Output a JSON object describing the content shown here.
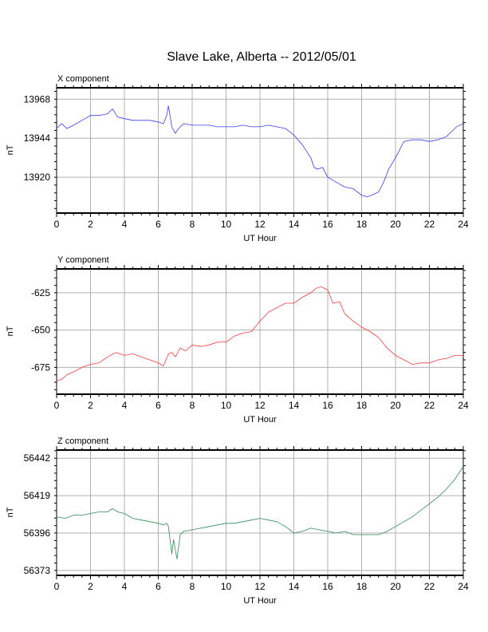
{
  "title": "Slave Lake, Alberta -- 2012/05/01",
  "chart_data": [
    {
      "type": "line",
      "panel_label": "X component",
      "xlabel": "UT Hour",
      "ylabel": "nT",
      "xlim": [
        0,
        24
      ],
      "ylim": [
        13898,
        13975
      ],
      "xticks": [
        0,
        2,
        4,
        6,
        8,
        10,
        12,
        14,
        16,
        18,
        20,
        22,
        24
      ],
      "yticks": [
        13920,
        13944,
        13968
      ],
      "grid": true,
      "color": "#3a3aff",
      "x": [
        0,
        0.3,
        0.6,
        1,
        1.5,
        2,
        2.5,
        3,
        3.3,
        3.6,
        4,
        4.5,
        5,
        5.5,
        6,
        6.3,
        6.5,
        6.6,
        6.8,
        7.0,
        7.2,
        7.5,
        8,
        8.5,
        9,
        9.5,
        10,
        10.5,
        11,
        11.5,
        12,
        12.5,
        13,
        13.5,
        14,
        14.5,
        15,
        15.2,
        15.4,
        15.7,
        16,
        16.5,
        17,
        17.5,
        18,
        18.3,
        18.6,
        19,
        19.3,
        19.6,
        20,
        20.5,
        21,
        21.5,
        22,
        22.5,
        23,
        23.3,
        23.6,
        24
      ],
      "y": [
        13950,
        13953,
        13950,
        13952,
        13955,
        13958,
        13958,
        13959,
        13962,
        13957,
        13956,
        13955,
        13955,
        13955,
        13954,
        13953,
        13958,
        13964,
        13951,
        13947,
        13950,
        13953,
        13952,
        13952,
        13952,
        13951,
        13951,
        13951,
        13952,
        13951,
        13951,
        13952,
        13951,
        13950,
        13946,
        13940,
        13932,
        13926,
        13925,
        13926,
        13920,
        13917,
        13914,
        13913,
        13909,
        13908,
        13909,
        13911,
        13917,
        13925,
        13932,
        13942,
        13943,
        13943,
        13942,
        13943,
        13945,
        13948,
        13951,
        13953
      ]
    },
    {
      "type": "line",
      "panel_label": "Y component",
      "xlabel": "UT Hour",
      "ylabel": "nT",
      "xlim": [
        0,
        24
      ],
      "ylim": [
        -693,
        -609
      ],
      "xticks": [
        0,
        2,
        4,
        6,
        8,
        10,
        12,
        14,
        16,
        18,
        20,
        22,
        24
      ],
      "yticks": [
        -625,
        -650,
        -675
      ],
      "grid": true,
      "color": "#ff3a3a",
      "x": [
        0,
        0.3,
        0.6,
        1,
        1.5,
        2,
        2.5,
        3,
        3.5,
        4,
        4.5,
        5,
        5.5,
        6,
        6.3,
        6.6,
        6.8,
        7,
        7.3,
        7.6,
        8,
        8.5,
        9,
        9.5,
        10,
        10.5,
        11,
        11.5,
        12,
        12.5,
        13,
        13.5,
        14,
        14.5,
        15,
        15.3,
        15.6,
        16,
        16.3,
        16.7,
        17,
        17.5,
        18,
        18.5,
        19,
        19.5,
        20,
        20.5,
        21,
        21.5,
        22,
        22.5,
        23,
        23.5,
        24
      ],
      "y": [
        -684,
        -683,
        -680,
        -678,
        -675,
        -673,
        -672,
        -668,
        -665,
        -667,
        -666,
        -668,
        -670,
        -672,
        -674,
        -666,
        -665,
        -668,
        -662,
        -664,
        -660,
        -661,
        -660,
        -658,
        -658,
        -654,
        -652,
        -651,
        -644,
        -638,
        -635,
        -632,
        -632,
        -628,
        -625,
        -622,
        -621,
        -623,
        -632,
        -631,
        -639,
        -644,
        -648,
        -651,
        -655,
        -662,
        -667,
        -670,
        -673,
        -672,
        -672,
        -670,
        -669,
        -667,
        -667
      ]
    },
    {
      "type": "line",
      "panel_label": "Z component",
      "xlabel": "UT Hour",
      "ylabel": "nT",
      "xlim": [
        0,
        24
      ],
      "ylim": [
        56370,
        56447
      ],
      "xticks": [
        0,
        2,
        4,
        6,
        8,
        10,
        12,
        14,
        16,
        18,
        20,
        22,
        24
      ],
      "yticks": [
        56442,
        56419,
        56396,
        56373
      ],
      "grid": true,
      "color": "#2e8b57",
      "x": [
        0,
        0.5,
        1,
        1.5,
        2,
        2.5,
        3,
        3.3,
        3.6,
        4,
        4.5,
        5,
        5.5,
        6,
        6.3,
        6.5,
        6.6,
        6.8,
        6.9,
        7.1,
        7.3,
        7.5,
        8,
        8.5,
        9,
        9.5,
        10,
        10.5,
        11,
        11.5,
        12,
        12.5,
        13,
        13.5,
        14,
        14.5,
        15,
        15.5,
        16,
        16.5,
        17,
        17.5,
        18,
        18.5,
        19,
        19.5,
        20,
        20.5,
        21,
        21.5,
        22,
        22.5,
        23,
        23.5,
        24
      ],
      "y": [
        56406,
        56405,
        56407,
        56407,
        56408,
        56409,
        56409,
        56411,
        56409,
        56408,
        56405,
        56404,
        56403,
        56402,
        56401,
        56402,
        56400,
        56383,
        56392,
        56380,
        56395,
        56397,
        56398,
        56399,
        56400,
        56401,
        56402,
        56402,
        56403,
        56404,
        56405,
        56404,
        56403,
        56400,
        56396,
        56397,
        56399,
        56398,
        56397,
        56396,
        56397,
        56395,
        56395,
        56395,
        56395,
        56397,
        56400,
        56403,
        56406,
        56410,
        56414,
        56418,
        56423,
        56429,
        56437
      ]
    }
  ]
}
